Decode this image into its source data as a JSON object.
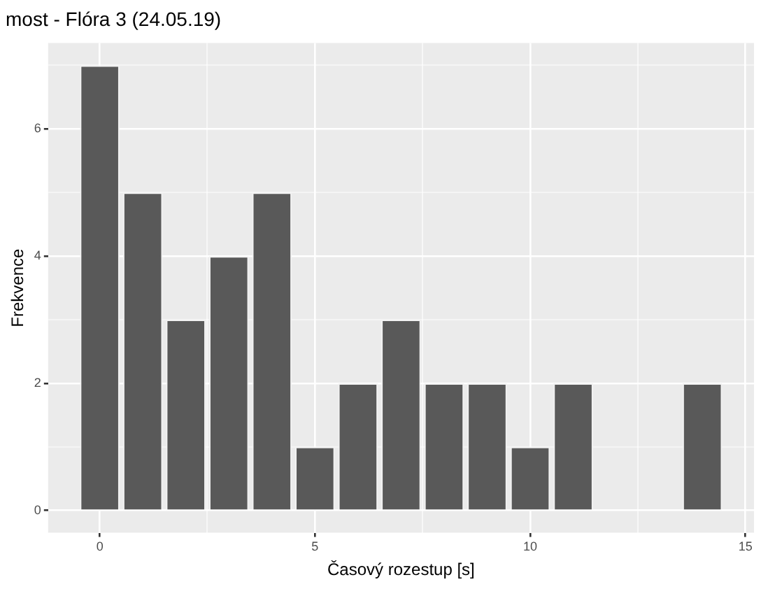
{
  "chart_data": {
    "type": "histogram",
    "title": "most - Flóra 3 (24.05.19)",
    "xlabel": "Časový rozestup [s]",
    "ylabel": "Frekvence",
    "bins": [
      -0.5,
      0.5,
      1.5,
      2.5,
      3.5,
      4.5,
      5.5,
      6.5,
      7.5,
      8.5,
      9.5,
      10.5,
      11.5,
      12.5,
      13.5,
      14.5
    ],
    "values": [
      7,
      5,
      3,
      4,
      5,
      1,
      2,
      3,
      2,
      2,
      1,
      2,
      0,
      0,
      2
    ],
    "color": "#595959",
    "xlim": [
      -1.2,
      15.2
    ],
    "xticks": [
      0,
      {
        "value": 2.5,
        "label": null
      },
      5,
      {
        "value": 7.5,
        "label": null
      },
      10,
      {
        "value": 12.5,
        "label": null
      },
      15
    ],
    "ylim": [
      -0.35,
      7.35
    ],
    "yticks": [
      0,
      {
        "value": 1,
        "label": null
      },
      2,
      {
        "value": 3,
        "label": null
      },
      4,
      {
        "value": 5,
        "label": null
      },
      6,
      {
        "value": 7,
        "label": null
      }
    ],
    "grid": true,
    "legend": false
  }
}
